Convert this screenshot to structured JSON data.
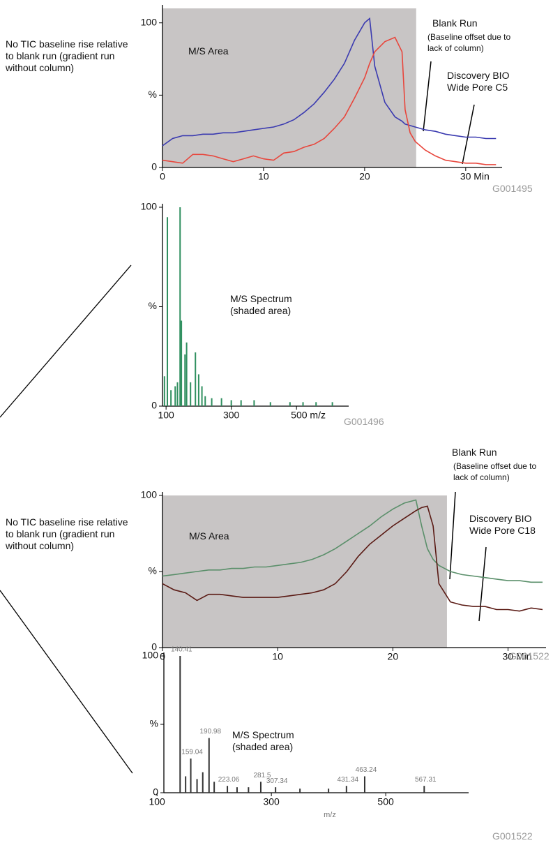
{
  "chart_data": [
    {
      "type": "line",
      "shade_label": "M/S Area",
      "shade_end": 25.1,
      "side_note": "No TIC baseline rise relative to blank run (gradient run without column)",
      "annotation_note": "(Baseline offset due to lack of column)",
      "figure_code": "G001495",
      "x": [
        0,
        1,
        2,
        3,
        4,
        5,
        6,
        7,
        8,
        9,
        10,
        11,
        12,
        13,
        14,
        15,
        16,
        17,
        18,
        19,
        20,
        20.5,
        21,
        22,
        23,
        23.7,
        24,
        24.5,
        25,
        26,
        27,
        28,
        29,
        30,
        31,
        32,
        33
      ],
      "series": [
        {
          "name": "Blank Run",
          "color": "#3a3ab0",
          "values": [
            15,
            20,
            22,
            22,
            23,
            23,
            24,
            24,
            25,
            26,
            27,
            28,
            30,
            33,
            38,
            44,
            52,
            61,
            72,
            88,
            100,
            103,
            70,
            45,
            35,
            32,
            30,
            29,
            28,
            26,
            25,
            23,
            22,
            21,
            21,
            20,
            20
          ]
        },
        {
          "name": "Discovery BIO Wide Pore C5",
          "color": "#e8463c",
          "values": [
            5,
            4,
            3,
            9,
            9,
            8,
            6,
            4,
            6,
            8,
            6,
            5,
            10,
            11,
            14,
            16,
            20,
            27,
            35,
            48,
            62,
            72,
            80,
            87,
            90,
            80,
            40,
            24,
            18,
            12,
            8,
            5,
            4,
            3,
            3,
            2,
            2
          ]
        }
      ],
      "xlim": [
        0,
        33.6
      ],
      "ylim": [
        0,
        110
      ],
      "xticks": [
        0,
        10,
        20,
        {
          "value": 30,
          "label": "30 Min"
        }
      ],
      "yticks": [
        0,
        {
          "value": 50,
          "label": "%"
        },
        100
      ]
    },
    {
      "type": "bar",
      "title": "M/S Spectrum (shaded area)",
      "figure_code": "G001496",
      "color": "#2f8f5f",
      "x": [
        95,
        104,
        115,
        128,
        135,
        143,
        147,
        158,
        163,
        175,
        190,
        200,
        210,
        220,
        240,
        270,
        300,
        330,
        370,
        420,
        480,
        520,
        560,
        610
      ],
      "values": [
        15,
        95,
        8,
        10,
        12,
        100,
        43,
        26,
        32,
        12,
        27,
        16,
        10,
        5,
        4,
        4,
        3,
        3,
        3,
        2,
        2,
        2,
        2,
        2
      ],
      "xlim": [
        89,
        660
      ],
      "ylim": [
        0,
        100
      ],
      "xticks": [
        100,
        300,
        {
          "value": 500,
          "label": "500 m/z"
        }
      ],
      "yticks": [
        0,
        {
          "value": 50,
          "label": "%"
        },
        100
      ]
    },
    {
      "type": "line",
      "shade_label": "M/S Area",
      "shade_end": 24.7,
      "side_note": "No TIC baseline rise relative to blank run (gradient run without column)",
      "annotation_note": "(Baseline offset due to lack of column)",
      "figure_code": "G001522",
      "x": [
        0,
        1,
        2,
        3,
        4,
        5,
        6,
        7,
        8,
        9,
        10,
        11,
        12,
        13,
        14,
        15,
        16,
        17,
        18,
        19,
        20,
        21,
        22,
        22.5,
        23,
        23.5,
        24,
        25,
        26,
        27,
        28,
        29,
        30,
        31,
        32,
        33
      ],
      "series": [
        {
          "name": "Blank Run",
          "color": "#5a8f6a",
          "values": [
            47,
            48,
            49,
            50,
            51,
            51,
            52,
            52,
            53,
            53,
            54,
            55,
            56,
            58,
            61,
            65,
            70,
            75,
            80,
            86,
            91,
            95,
            97,
            80,
            65,
            58,
            54,
            50,
            48,
            47,
            46,
            45,
            44,
            44,
            43,
            43
          ]
        },
        {
          "name": "Discovery BIO Wide Pore C18",
          "color": "#5a1a14",
          "values": [
            42,
            38,
            36,
            31,
            35,
            35,
            34,
            33,
            33,
            33,
            33,
            34,
            35,
            36,
            38,
            42,
            50,
            60,
            68,
            74,
            80,
            85,
            90,
            92,
            93,
            80,
            42,
            30,
            28,
            27,
            27,
            25,
            25,
            24,
            26,
            25
          ]
        }
      ],
      "xlim": [
        0,
        33.3
      ],
      "ylim": [
        0,
        100
      ],
      "xticks": [
        0,
        10,
        20,
        {
          "value": 30,
          "label": "30 Min"
        }
      ],
      "yticks": [
        0,
        {
          "value": 50,
          "label": "%"
        },
        100
      ]
    },
    {
      "type": "bar",
      "title": "M/S Spectrum (shaded area)",
      "figure_code": "G001522",
      "color": "#333333",
      "x_label": "m/z",
      "x": [
        140.41,
        150,
        159.04,
        170,
        180,
        190.98,
        200,
        223.06,
        240,
        260,
        281.5,
        307.34,
        350,
        400,
        431.34,
        463.24,
        567.31
      ],
      "values": [
        100,
        12,
        25,
        10,
        15,
        40,
        8,
        5,
        4,
        4,
        8,
        4,
        3,
        3,
        5,
        12,
        5
      ],
      "peak_labels": [
        "140.41",
        null,
        "159.04",
        null,
        null,
        "190.98",
        null,
        "223.06",
        null,
        null,
        "281.5",
        "307.34",
        null,
        null,
        "431.34",
        "463.24",
        "567.31"
      ],
      "xlim": [
        112,
        645
      ],
      "ylim": [
        0,
        100
      ],
      "xticks": [
        100,
        300,
        500
      ],
      "yticks": [
        0,
        {
          "value": 50,
          "label": "%"
        },
        100
      ]
    }
  ]
}
